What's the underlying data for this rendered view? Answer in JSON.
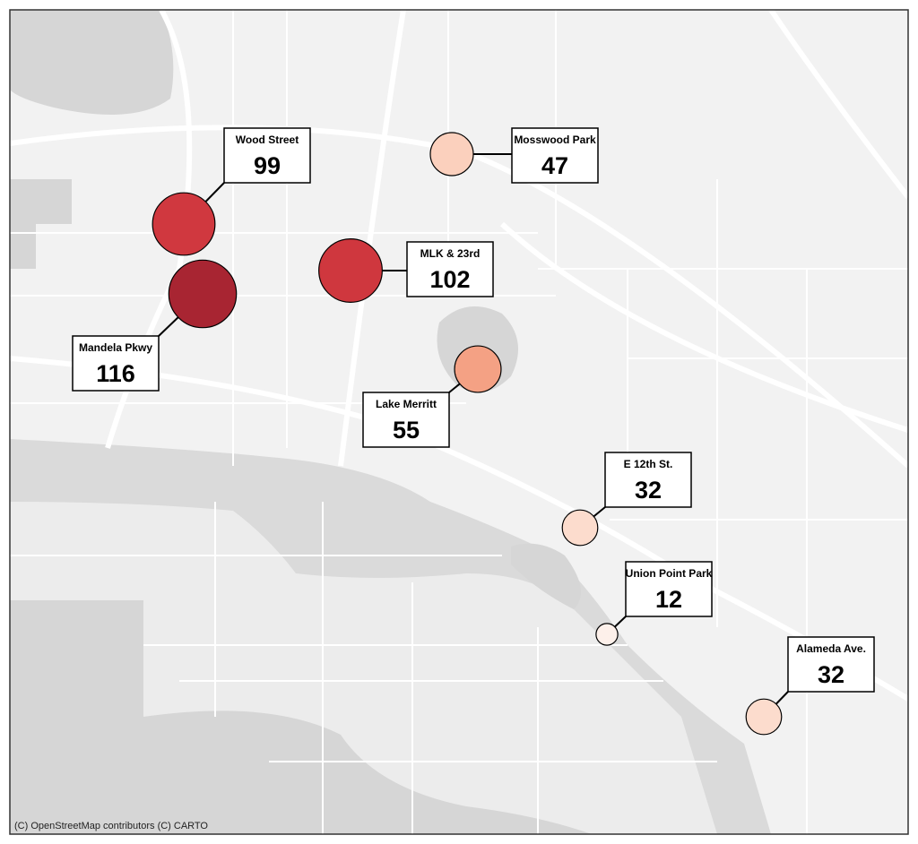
{
  "map": {
    "attribution": "(C) OpenStreetMap contributors (C) CARTO",
    "points": [
      {
        "name": "Wood Street",
        "value": 99,
        "color": "#d0383f"
      },
      {
        "name": "Mandela Pkwy",
        "value": 116,
        "color": "#a82532"
      },
      {
        "name": "MLK & 23rd",
        "value": 102,
        "color": "#cf373e"
      },
      {
        "name": "Mosswood Park",
        "value": 47,
        "color": "#fbd0bd"
      },
      {
        "name": "Lake Merritt",
        "value": 55,
        "color": "#f4a184"
      },
      {
        "name": "E 12th St.",
        "value": 32,
        "color": "#fcdccd"
      },
      {
        "name": "Union Point Park",
        "value": 12,
        "color": "#fdf0ea"
      },
      {
        "name": "Alameda Ave.",
        "value": 32,
        "color": "#fcdccd"
      }
    ]
  }
}
